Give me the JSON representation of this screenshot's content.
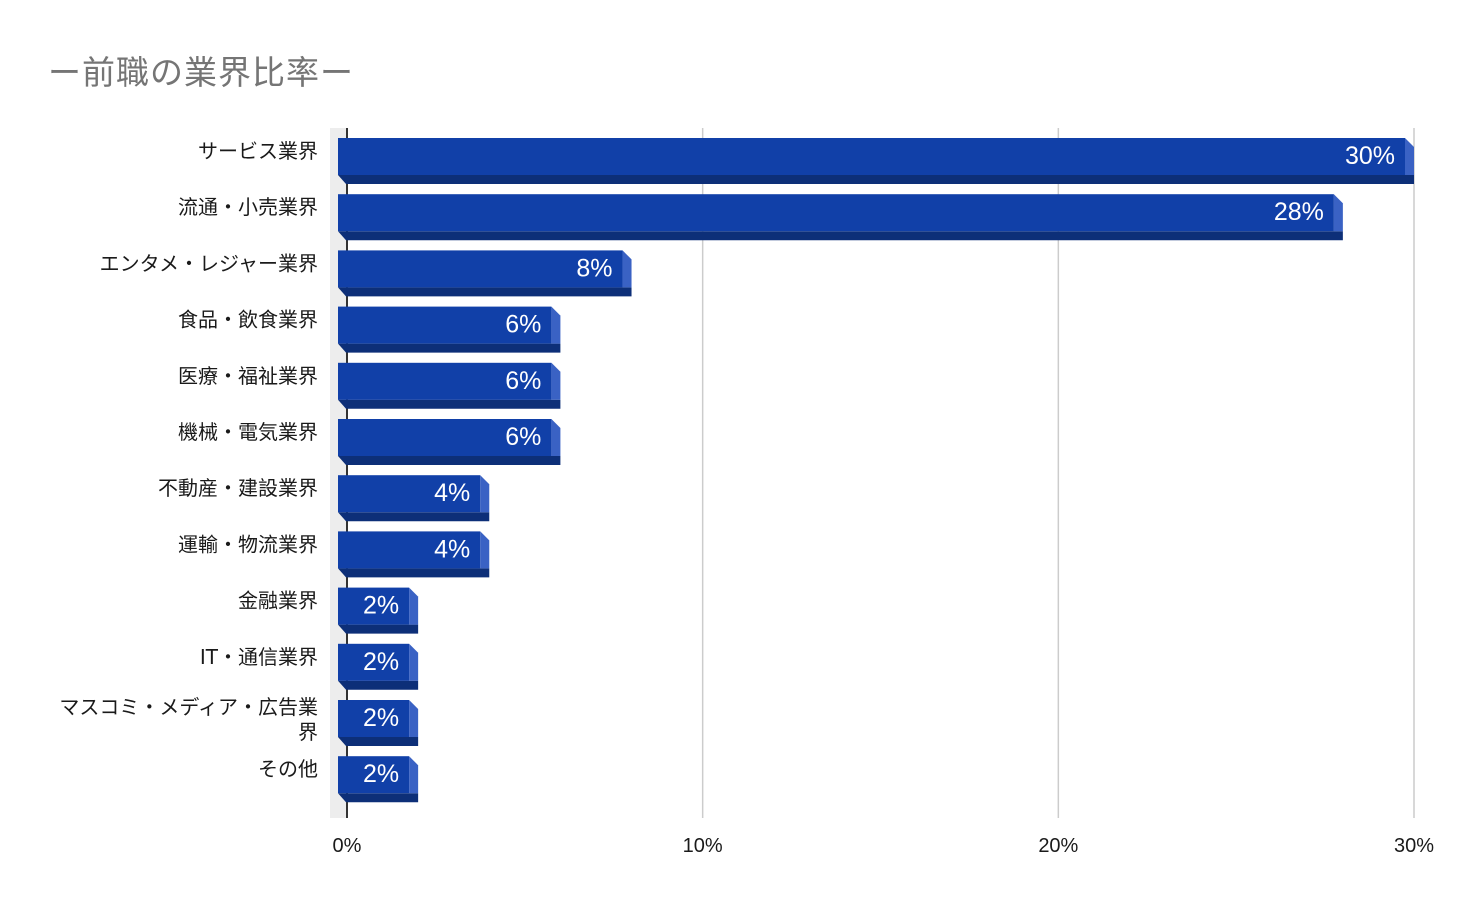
{
  "chart_data": {
    "type": "bar",
    "orientation": "horizontal",
    "title": "ー前職の業界比率ー",
    "xlabel": "",
    "ylabel": "",
    "categories": [
      "サービス業界",
      "流通・小売業界",
      "エンタメ・レジャー業界",
      "食品・飲食業界",
      "医療・福祉業界",
      "機械・電気業界",
      "不動産・建設業界",
      "運輸・物流業界",
      "金融業界",
      "IT・通信業界",
      "マスコミ・メディア・広告業界",
      "その他"
    ],
    "values": [
      30,
      28,
      8,
      6,
      6,
      6,
      4,
      4,
      2,
      2,
      2,
      2
    ],
    "data_labels": [
      "30%",
      "28%",
      "8%",
      "6%",
      "6%",
      "6%",
      "4%",
      "4%",
      "2%",
      "2%",
      "2%",
      "2%"
    ],
    "xlim": [
      0,
      30
    ],
    "x_ticks": [
      0,
      10,
      20,
      30
    ],
    "x_tick_labels": [
      "0%",
      "10%",
      "20%",
      "30%"
    ],
    "grid": "vertical",
    "legend": "none",
    "bar_color": "#1140a8",
    "bar_shadow_color": "#0d2f78",
    "bar_side_color": "#3a62c4"
  }
}
